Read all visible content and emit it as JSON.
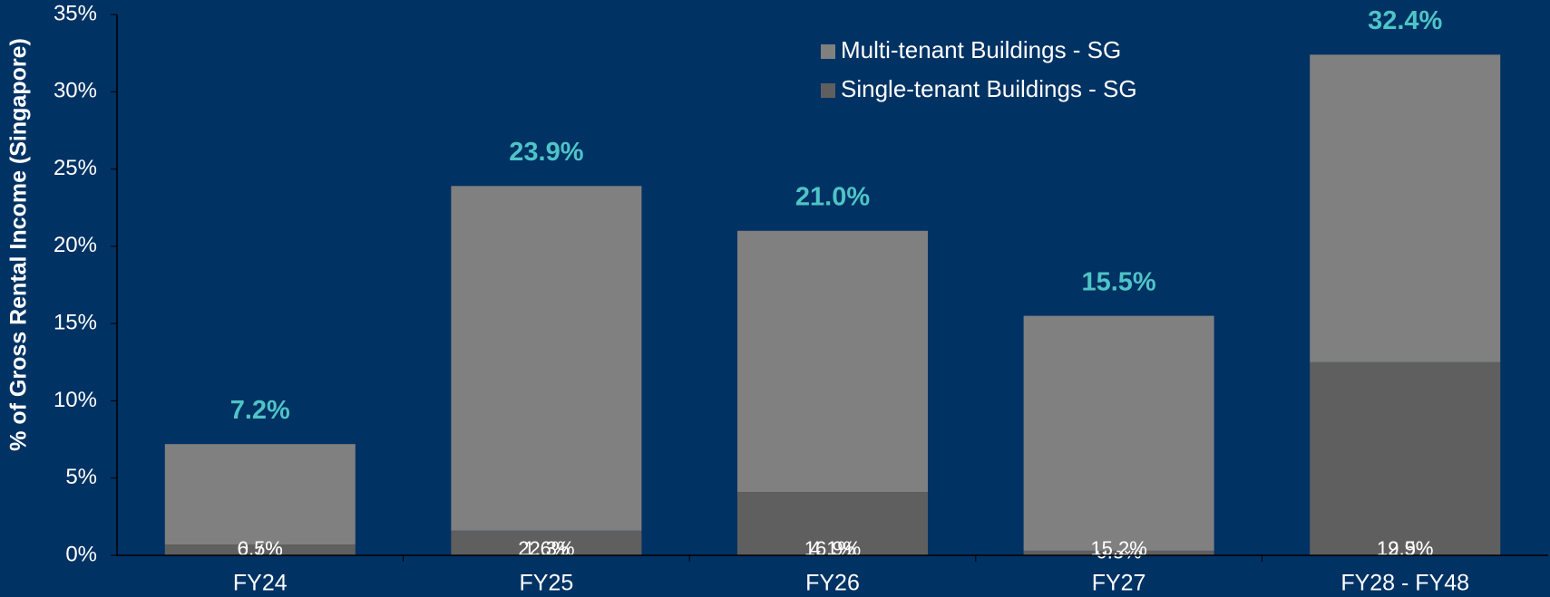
{
  "chart_data": {
    "type": "stacked_bar",
    "y_axis_label": "% of  Gross Rental Income (Singapore)",
    "categories": [
      "FY24",
      "FY25",
      "FY26",
      "FY27",
      "FY28 - FY48"
    ],
    "series": [
      {
        "name": "Single-tenant Buildings - SG",
        "color": "#5f5f5f",
        "values": [
          0.7,
          1.6,
          4.1,
          0.3,
          12.5
        ],
        "value_labels": [
          "0.7%",
          "1.6%",
          "4.1%",
          "0.3%",
          "12.5%"
        ]
      },
      {
        "name": "Multi-tenant Buildings - SG",
        "color": "#808080",
        "values": [
          6.5,
          22.3,
          16.9,
          15.2,
          19.9
        ],
        "value_labels": [
          "6.5%",
          "22.3%",
          "16.9%",
          "15.2%",
          "19.9%"
        ]
      }
    ],
    "totals": [
      7.2,
      23.9,
      21.0,
      15.5,
      32.4
    ],
    "total_labels": [
      "7.2%",
      "23.9%",
      "21.0%",
      "15.5%",
      "32.4%"
    ],
    "total_color": "#4fc4c6",
    "ylim": [
      0,
      35
    ],
    "yticks": [
      {
        "value": 0,
        "label": "0%"
      },
      {
        "value": 5,
        "label": "5%"
      },
      {
        "value": 10,
        "label": "10%"
      },
      {
        "value": 15,
        "label": "15%"
      },
      {
        "value": 20,
        "label": "20%"
      },
      {
        "value": 25,
        "label": "25%"
      },
      {
        "value": 30,
        "label": "30%"
      },
      {
        "value": 35,
        "label": "35%"
      }
    ],
    "legend": "top-center",
    "grid": false
  }
}
